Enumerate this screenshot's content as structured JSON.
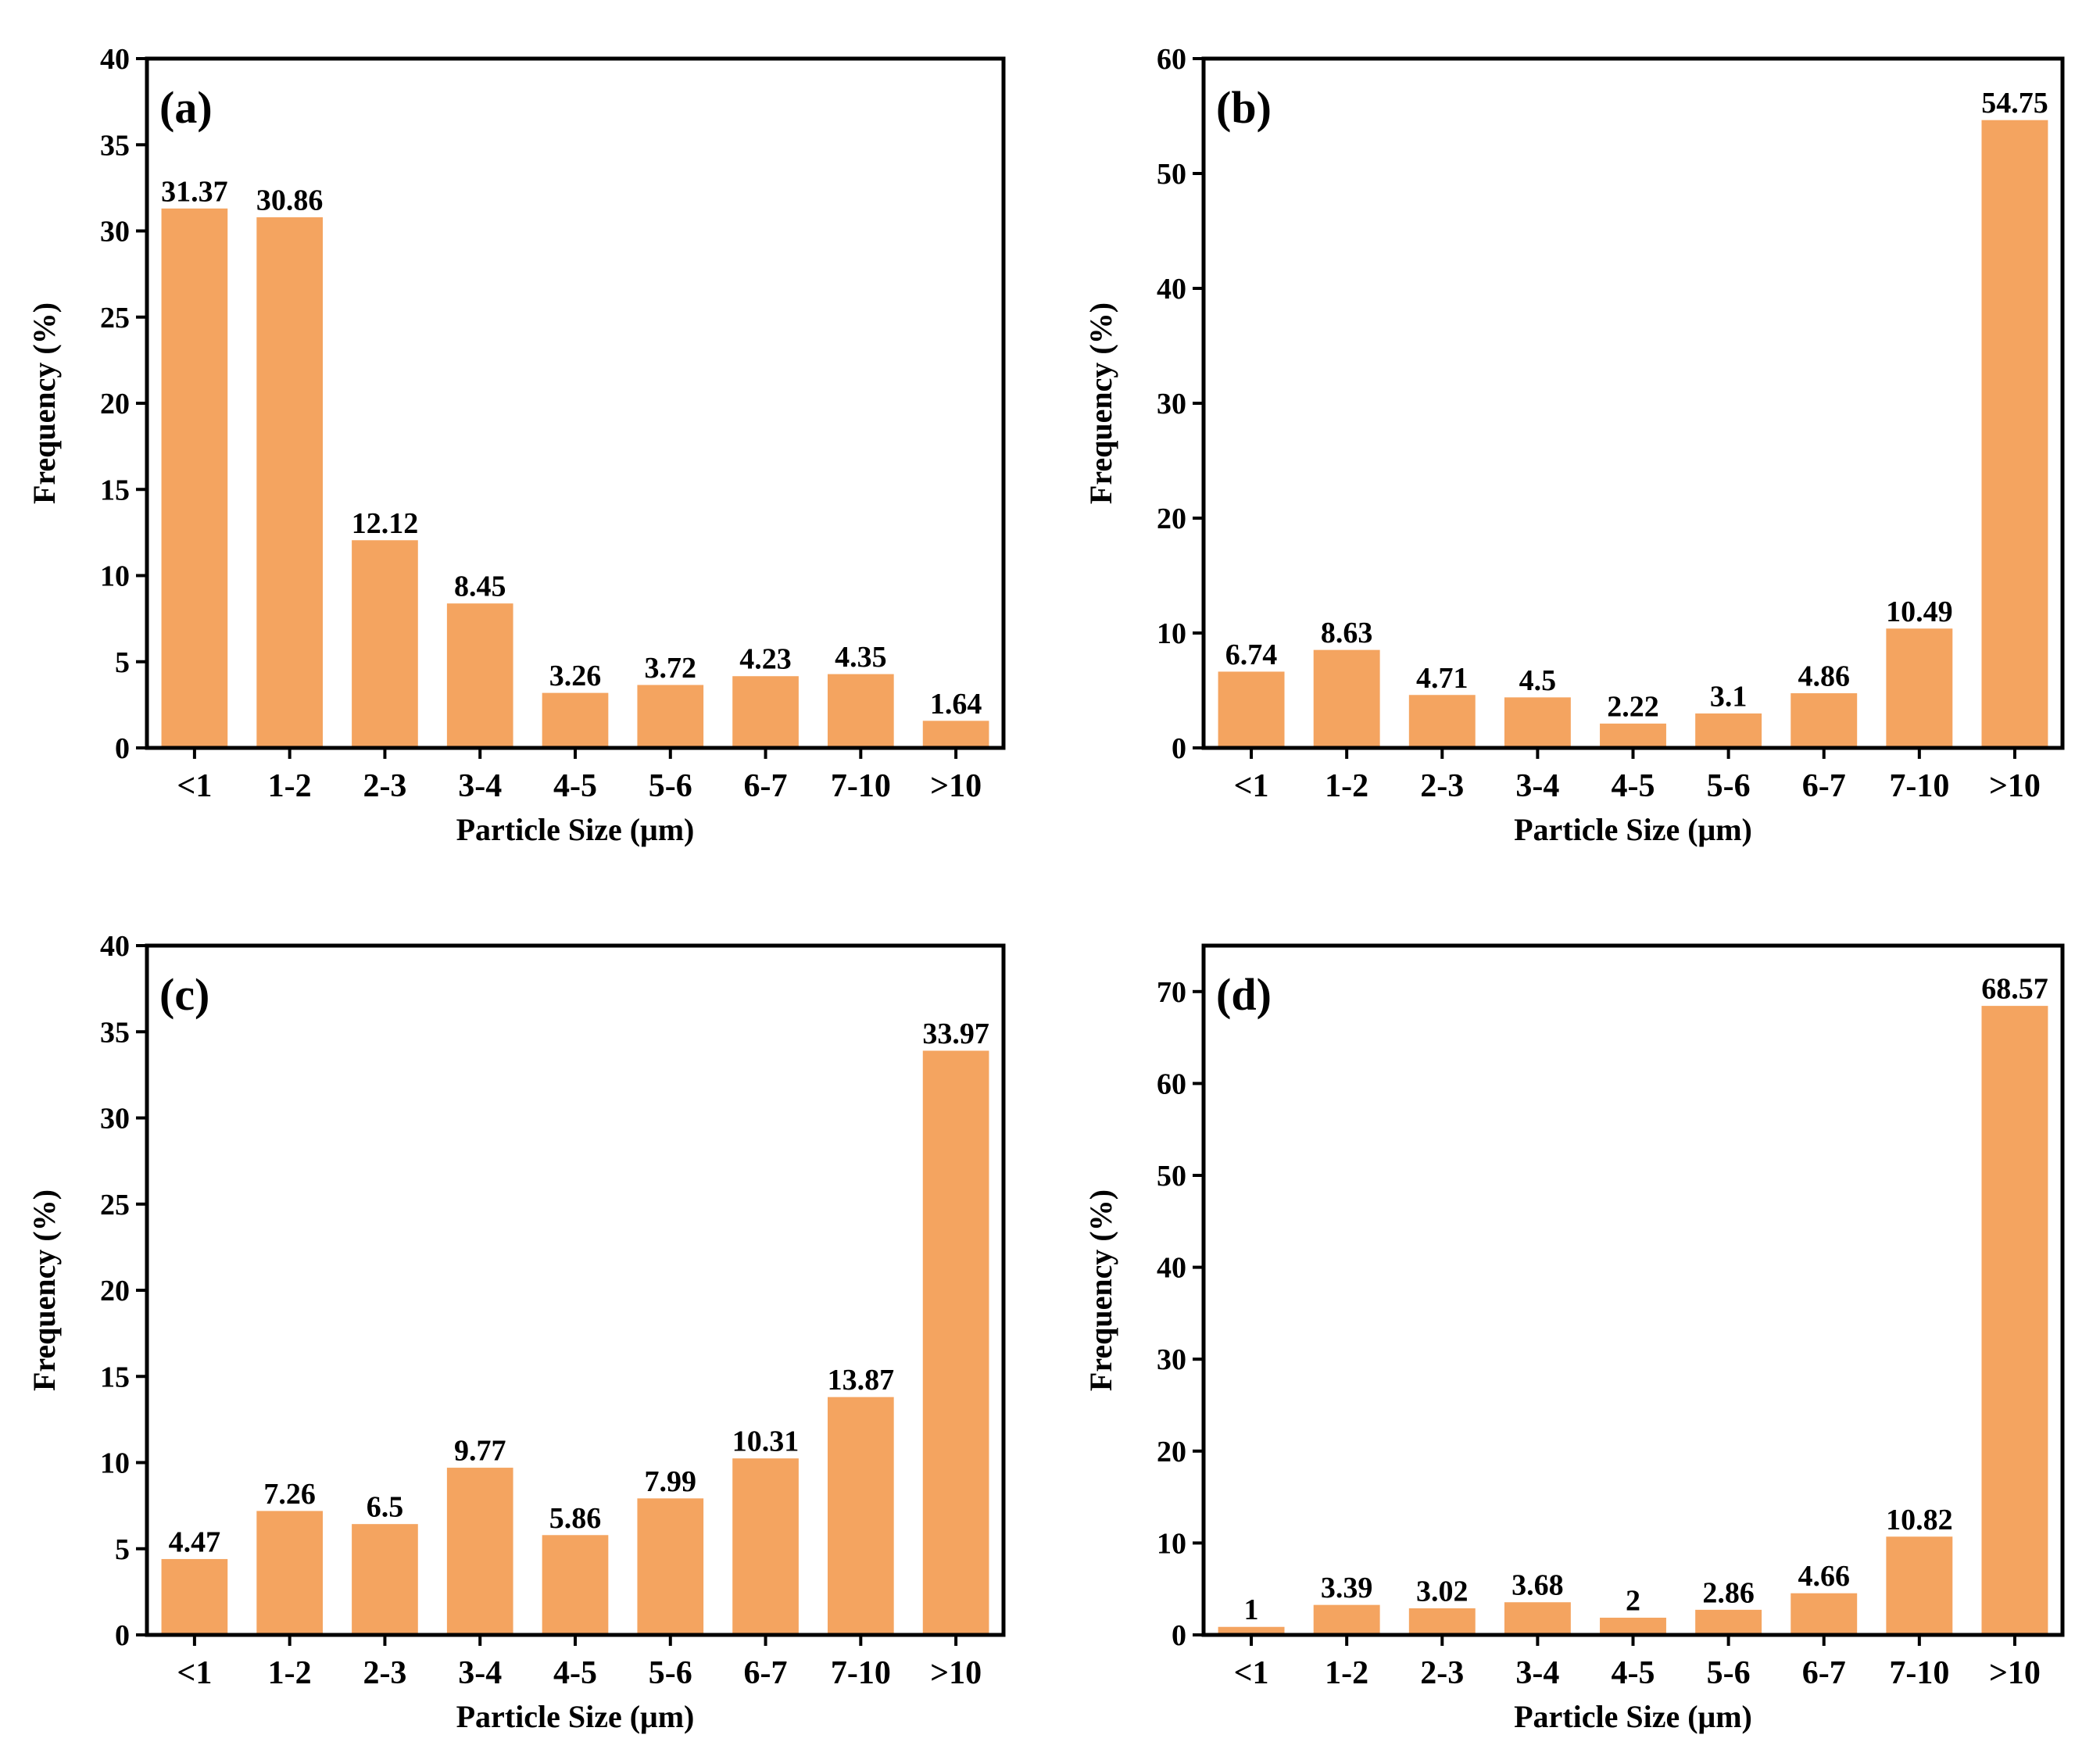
{
  "style": {
    "bar_color": "#F4A460",
    "bar_edge_color": "#ffffff",
    "axis_color": "#000000"
  },
  "chart_data": [
    {
      "type": "bar",
      "panel": "(a)",
      "xlabel": "Particle Size (μm)",
      "ylabel": "Frequency (%)",
      "categories": [
        "<1",
        "1-2",
        "2-3",
        "3-4",
        "4-5",
        "5-6",
        "6-7",
        "7-10",
        ">10"
      ],
      "values": [
        31.37,
        30.86,
        12.12,
        8.45,
        3.26,
        3.72,
        4.23,
        4.35,
        1.64
      ],
      "value_labels": [
        "31.37",
        "30.86",
        "12.12",
        "8.45",
        "3.26",
        "3.72",
        "4.23",
        "4.35",
        "1.64"
      ],
      "ylim": [
        0,
        40
      ],
      "yticks": [
        0,
        5,
        10,
        15,
        20,
        25,
        30,
        35,
        40
      ]
    },
    {
      "type": "bar",
      "panel": "(b)",
      "xlabel": "Particle Size (μm)",
      "ylabel": "Frequency (%)",
      "categories": [
        "<1",
        "1-2",
        "2-3",
        "3-4",
        "4-5",
        "5-6",
        "6-7",
        "7-10",
        ">10"
      ],
      "values": [
        6.74,
        8.63,
        4.71,
        4.5,
        2.22,
        3.1,
        4.86,
        10.49,
        54.75
      ],
      "value_labels": [
        "6.74",
        "8.63",
        "4.71",
        "4.5",
        "2.22",
        "3.1",
        "4.86",
        "10.49",
        "54.75"
      ],
      "ylim": [
        0,
        60
      ],
      "yticks": [
        0,
        10,
        20,
        30,
        40,
        50,
        60
      ]
    },
    {
      "type": "bar",
      "panel": "(c)",
      "xlabel": "Particle Size (μm)",
      "ylabel": "Frequency (%)",
      "categories": [
        "<1",
        "1-2",
        "2-3",
        "3-4",
        "4-5",
        "5-6",
        "6-7",
        "7-10",
        ">10"
      ],
      "values": [
        4.47,
        7.26,
        6.5,
        9.77,
        5.86,
        7.99,
        10.31,
        13.87,
        33.97
      ],
      "value_labels": [
        "4.47",
        "7.26",
        "6.5",
        "9.77",
        "5.86",
        "7.99",
        "10.31",
        "13.87",
        "33.97"
      ],
      "ylim": [
        0,
        40
      ],
      "yticks": [
        0,
        5,
        10,
        15,
        20,
        25,
        30,
        35,
        40
      ]
    },
    {
      "type": "bar",
      "panel": "(d)",
      "xlabel": "Particle Size (μm)",
      "ylabel": "Frequency (%)",
      "categories": [
        "<1",
        "1-2",
        "2-3",
        "3-4",
        "4-5",
        "5-6",
        "6-7",
        "7-10",
        ">10"
      ],
      "values": [
        1,
        3.39,
        3.02,
        3.68,
        2,
        2.86,
        4.66,
        10.82,
        68.57
      ],
      "value_labels": [
        "1",
        "3.39",
        "3.02",
        "3.68",
        "2",
        "2.86",
        "4.66",
        "10.82",
        "68.57"
      ],
      "ylim": [
        0,
        75
      ],
      "yticks": [
        0,
        10,
        20,
        30,
        40,
        50,
        60,
        70
      ]
    }
  ]
}
